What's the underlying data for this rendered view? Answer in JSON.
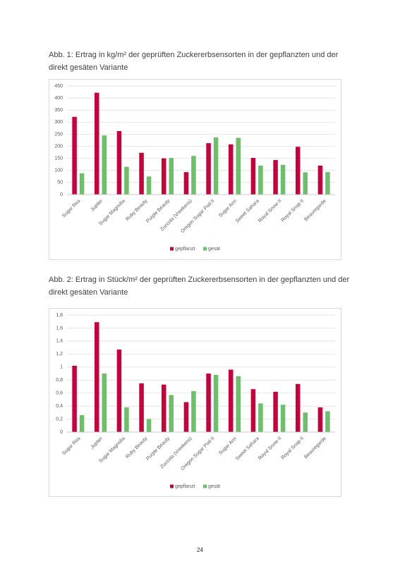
{
  "chart_data": [
    {
      "type": "bar",
      "title": "Abb. 1: Ertrag in kg/m² der geprüften Zuckererbsensorten in der gepflanzten und der direkt gesäten Variante",
      "categories": [
        "Sugar Rea",
        "Jupiter",
        "Sugar Magnolia",
        "Ruby Beauty",
        "Purple Beauty",
        "Zuccola (Vreekens)",
        "Oregon Sugar Pod II",
        "Sugar Ann",
        "Sweet Sahara",
        "Royal Snow II",
        "Royal Snap II",
        "Beauregarde"
      ],
      "series": [
        {
          "name": "gepflanzt",
          "color": "#c8003c",
          "values": [
            322,
            422,
            263,
            173,
            150,
            93,
            213,
            208,
            152,
            143,
            198,
            120
          ]
        },
        {
          "name": "gesät",
          "color": "#6dbf6a",
          "values": [
            88,
            245,
            115,
            75,
            152,
            160,
            237,
            235,
            120,
            123,
            92,
            93
          ]
        }
      ],
      "ylim": [
        0,
        450
      ],
      "yticks": [
        0,
        50,
        100,
        150,
        200,
        250,
        300,
        350,
        400,
        450
      ],
      "grid": true,
      "legend": "bottom"
    },
    {
      "type": "bar",
      "title": "Abb. 2: Ertrag in Stück/m² der geprüften Zuckererbsensorten in der gepflanzten und der direkt gesäten Variante",
      "categories": [
        "Sugar Rea",
        "Jupiter",
        "Sugar Magnolia",
        "Ruby Beauty",
        "Purple Beauty",
        "Zuccola (Vreekens)",
        "Oregon Sugar Pod II",
        "Sugar Ann",
        "Sweet Sahara",
        "Royal Snow II",
        "Royal Snap II",
        "Beauregarde"
      ],
      "series": [
        {
          "name": "gepflanzt",
          "color": "#c8003c",
          "values": [
            1.02,
            1.69,
            1.27,
            0.75,
            0.73,
            0.46,
            0.9,
            0.96,
            0.66,
            0.62,
            0.74,
            0.38
          ]
        },
        {
          "name": "gesät",
          "color": "#6dbf6a",
          "values": [
            0.26,
            0.9,
            0.38,
            0.2,
            0.57,
            0.63,
            0.88,
            0.86,
            0.44,
            0.42,
            0.3,
            0.32
          ]
        }
      ],
      "ylim": [
        0,
        1.8
      ],
      "yticks": [
        0,
        {
          "value": 0.2,
          "label": "0,2"
        },
        {
          "value": 0.4,
          "label": "0,4"
        },
        {
          "value": 0.6,
          "label": "0,6"
        },
        {
          "value": 0.8,
          "label": "0,8"
        },
        1,
        {
          "value": 1.2,
          "label": "1,2"
        },
        {
          "value": 1.4,
          "label": "1,4"
        },
        {
          "value": 1.6,
          "label": "1,6"
        },
        {
          "value": 1.8,
          "label": "1,8"
        }
      ],
      "grid": true,
      "legend": "bottom"
    }
  ],
  "page_number": "24"
}
